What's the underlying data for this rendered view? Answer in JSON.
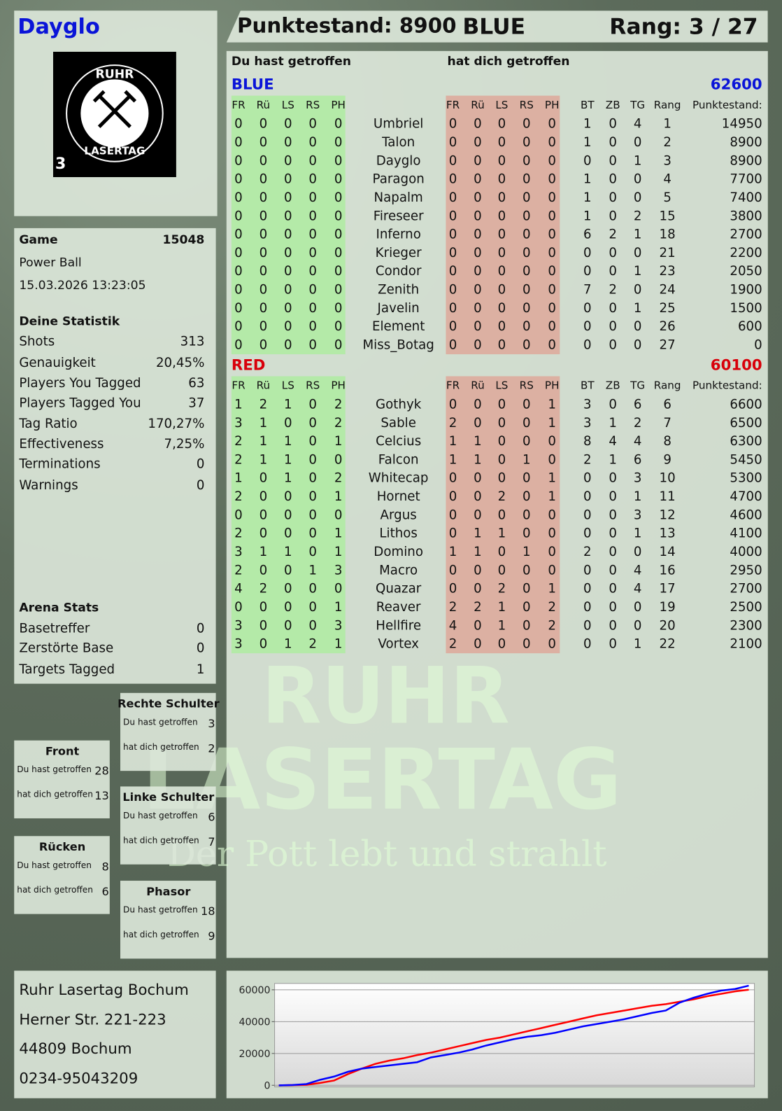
{
  "header": {
    "player": "Dayglo",
    "score": "Punktestand: 8900",
    "team": "BLUE",
    "rank": "Rang: 3 / 27"
  },
  "logo": {
    "top": "RUHR",
    "bottom": "LASERTAG",
    "badge": "3"
  },
  "watermark": {
    "line1": "RUHR",
    "line2": "LASERTAG",
    "slogan": "Der Pott lebt und strahlt"
  },
  "game": {
    "label": "Game",
    "id": 15048,
    "mode": "Power Ball",
    "datetime": "15.03.2026 13:23:05"
  },
  "stats": {
    "title": "Deine Statistik",
    "rows": [
      [
        "Shots",
        313
      ],
      [
        "Genauigkeit",
        "20,45%"
      ],
      [
        "Players You Tagged",
        63
      ],
      [
        "Players Tagged You",
        37
      ],
      [
        "Tag Ratio",
        "170,27%"
      ],
      [
        "Effectiveness",
        "7,25%"
      ],
      [
        "Terminations",
        0
      ],
      [
        "Warnings",
        0
      ]
    ]
  },
  "arena": {
    "title": "Arena Stats",
    "rows": [
      [
        "Basetreffer",
        0
      ],
      [
        "Zerstörte Base",
        0
      ],
      [
        "Targets Tagged",
        1
      ]
    ]
  },
  "zones": [
    {
      "title": "Rechte Schulter",
      "rows": [
        [
          "Du hast getroffen",
          3
        ],
        [
          "hat dich getroffen",
          2
        ]
      ]
    },
    {
      "title": "Front",
      "rows": [
        [
          "Du hast getroffen",
          28
        ],
        [
          "hat dich getroffen",
          13
        ]
      ]
    },
    {
      "title": "Linke Schulter",
      "rows": [
        [
          "Du hast getroffen",
          6
        ],
        [
          "hat dich getroffen",
          7
        ]
      ]
    },
    {
      "title": "Rücken",
      "rows": [
        [
          "Du hast getroffen",
          8
        ],
        [
          "hat dich getroffen",
          6
        ]
      ]
    },
    {
      "title": "Phasor",
      "rows": [
        [
          "Du hast getroffen",
          18
        ],
        [
          "hat dich getroffen",
          9
        ]
      ]
    }
  ],
  "table": {
    "out_heading": "Du hast getroffen",
    "in_heading": "hat dich getroffen",
    "hit_columns": [
      "FR",
      "Rü",
      "LS",
      "RS",
      "PH"
    ],
    "stat_columns": [
      "BT",
      "ZB",
      "TG",
      "Rang"
    ],
    "score_column": "Punktestand:",
    "teams": [
      {
        "name": "BLUE",
        "total": 62600,
        "color": "#0a14d8",
        "rows": [
          {
            "player": "Umbriel",
            "out": [
              0,
              0,
              0,
              0,
              0
            ],
            "in": [
              0,
              0,
              0,
              0,
              0
            ],
            "stats": [
              1,
              0,
              4,
              1
            ],
            "score": 14950
          },
          {
            "player": "Talon",
            "out": [
              0,
              0,
              0,
              0,
              0
            ],
            "in": [
              0,
              0,
              0,
              0,
              0
            ],
            "stats": [
              1,
              0,
              0,
              2
            ],
            "score": 8900
          },
          {
            "player": "Dayglo",
            "out": [
              0,
              0,
              0,
              0,
              0
            ],
            "in": [
              0,
              0,
              0,
              0,
              0
            ],
            "stats": [
              0,
              0,
              1,
              3
            ],
            "score": 8900
          },
          {
            "player": "Paragon",
            "out": [
              0,
              0,
              0,
              0,
              0
            ],
            "in": [
              0,
              0,
              0,
              0,
              0
            ],
            "stats": [
              1,
              0,
              0,
              4
            ],
            "score": 7700
          },
          {
            "player": "Napalm",
            "out": [
              0,
              0,
              0,
              0,
              0
            ],
            "in": [
              0,
              0,
              0,
              0,
              0
            ],
            "stats": [
              1,
              0,
              0,
              5
            ],
            "score": 7400
          },
          {
            "player": "Fireseer",
            "out": [
              0,
              0,
              0,
              0,
              0
            ],
            "in": [
              0,
              0,
              0,
              0,
              0
            ],
            "stats": [
              1,
              0,
              2,
              15
            ],
            "score": 3800
          },
          {
            "player": "Inferno",
            "out": [
              0,
              0,
              0,
              0,
              0
            ],
            "in": [
              0,
              0,
              0,
              0,
              0
            ],
            "stats": [
              6,
              2,
              1,
              18
            ],
            "score": 2700
          },
          {
            "player": "Krieger",
            "out": [
              0,
              0,
              0,
              0,
              0
            ],
            "in": [
              0,
              0,
              0,
              0,
              0
            ],
            "stats": [
              0,
              0,
              0,
              21
            ],
            "score": 2200
          },
          {
            "player": "Condor",
            "out": [
              0,
              0,
              0,
              0,
              0
            ],
            "in": [
              0,
              0,
              0,
              0,
              0
            ],
            "stats": [
              0,
              0,
              1,
              23
            ],
            "score": 2050
          },
          {
            "player": "Zenith",
            "out": [
              0,
              0,
              0,
              0,
              0
            ],
            "in": [
              0,
              0,
              0,
              0,
              0
            ],
            "stats": [
              7,
              2,
              0,
              24
            ],
            "score": 1900
          },
          {
            "player": "Javelin",
            "out": [
              0,
              0,
              0,
              0,
              0
            ],
            "in": [
              0,
              0,
              0,
              0,
              0
            ],
            "stats": [
              0,
              0,
              1,
              25
            ],
            "score": 1500
          },
          {
            "player": "Element",
            "out": [
              0,
              0,
              0,
              0,
              0
            ],
            "in": [
              0,
              0,
              0,
              0,
              0
            ],
            "stats": [
              0,
              0,
              0,
              26
            ],
            "score": 600
          },
          {
            "player": "Miss_Botag",
            "out": [
              0,
              0,
              0,
              0,
              0
            ],
            "in": [
              0,
              0,
              0,
              0,
              0
            ],
            "stats": [
              0,
              0,
              0,
              27
            ],
            "score": 0
          }
        ]
      },
      {
        "name": "RED",
        "total": 60100,
        "color": "#d8000a",
        "rows": [
          {
            "player": "Gothyk",
            "out": [
              1,
              2,
              1,
              0,
              2
            ],
            "in": [
              0,
              0,
              0,
              0,
              1
            ],
            "stats": [
              3,
              0,
              6,
              6
            ],
            "score": 6600
          },
          {
            "player": "Sable",
            "out": [
              3,
              1,
              0,
              0,
              2
            ],
            "in": [
              2,
              0,
              0,
              0,
              1
            ],
            "stats": [
              3,
              1,
              2,
              7
            ],
            "score": 6500
          },
          {
            "player": "Celcius",
            "out": [
              2,
              1,
              1,
              0,
              1
            ],
            "in": [
              1,
              1,
              0,
              0,
              0
            ],
            "stats": [
              8,
              4,
              4,
              8
            ],
            "score": 6300
          },
          {
            "player": "Falcon",
            "out": [
              2,
              1,
              1,
              0,
              0
            ],
            "in": [
              1,
              1,
              0,
              1,
              0
            ],
            "stats": [
              2,
              1,
              6,
              9
            ],
            "score": 5450
          },
          {
            "player": "Whitecap",
            "out": [
              1,
              0,
              1,
              0,
              2
            ],
            "in": [
              0,
              0,
              0,
              0,
              1
            ],
            "stats": [
              0,
              0,
              3,
              10
            ],
            "score": 5300
          },
          {
            "player": "Hornet",
            "out": [
              2,
              0,
              0,
              0,
              1
            ],
            "in": [
              0,
              0,
              2,
              0,
              1
            ],
            "stats": [
              0,
              0,
              1,
              11
            ],
            "score": 4700
          },
          {
            "player": "Argus",
            "out": [
              0,
              0,
              0,
              0,
              0
            ],
            "in": [
              0,
              0,
              0,
              0,
              0
            ],
            "stats": [
              0,
              0,
              3,
              12
            ],
            "score": 4600
          },
          {
            "player": "Lithos",
            "out": [
              2,
              0,
              0,
              0,
              1
            ],
            "in": [
              0,
              1,
              1,
              0,
              0
            ],
            "stats": [
              0,
              0,
              1,
              13
            ],
            "score": 4100
          },
          {
            "player": "Domino",
            "out": [
              3,
              1,
              1,
              0,
              1
            ],
            "in": [
              1,
              1,
              0,
              1,
              0
            ],
            "stats": [
              2,
              0,
              0,
              14
            ],
            "score": 4000
          },
          {
            "player": "Macro",
            "out": [
              2,
              0,
              0,
              1,
              3
            ],
            "in": [
              0,
              0,
              0,
              0,
              0
            ],
            "stats": [
              0,
              0,
              4,
              16
            ],
            "score": 2950
          },
          {
            "player": "Quazar",
            "out": [
              4,
              2,
              0,
              0,
              0
            ],
            "in": [
              0,
              0,
              2,
              0,
              1
            ],
            "stats": [
              0,
              0,
              4,
              17
            ],
            "score": 2700
          },
          {
            "player": "Reaver",
            "out": [
              0,
              0,
              0,
              0,
              1
            ],
            "in": [
              2,
              2,
              1,
              0,
              2
            ],
            "stats": [
              0,
              0,
              0,
              19
            ],
            "score": 2500
          },
          {
            "player": "Hellfire",
            "out": [
              3,
              0,
              0,
              0,
              3
            ],
            "in": [
              4,
              0,
              1,
              0,
              2
            ],
            "stats": [
              0,
              0,
              0,
              20
            ],
            "score": 2300
          },
          {
            "player": "Vortex",
            "out": [
              3,
              0,
              1,
              2,
              1
            ],
            "in": [
              2,
              0,
              0,
              0,
              0
            ],
            "stats": [
              0,
              0,
              1,
              22
            ],
            "score": 2100
          }
        ]
      }
    ]
  },
  "footer": {
    "lines": [
      "Ruhr Lasertag Bochum",
      "Herner Str. 221-223",
      "44809 Bochum",
      "0234-95043209"
    ]
  },
  "chart_data": {
    "type": "line",
    "ylim": [
      -1000,
      64000
    ],
    "yticks": [
      0,
      20000,
      40000,
      60000
    ],
    "grid": true,
    "series": [
      {
        "color": "#ff0000",
        "values": [
          0,
          100,
          300,
          1500,
          3000,
          7000,
          10500,
          13500,
          15500,
          17000,
          19000,
          20500,
          22500,
          24500,
          26500,
          28500,
          30000,
          32000,
          34000,
          36000,
          38000,
          40000,
          42000,
          44000,
          45500,
          47000,
          48500,
          50000,
          51000,
          52500,
          54000,
          56000,
          57500,
          59000,
          60100
        ]
      },
      {
        "color": "#0000ff",
        "values": [
          0,
          200,
          800,
          3500,
          5500,
          8500,
          10500,
          11500,
          12500,
          13500,
          14500,
          17500,
          19000,
          20500,
          22500,
          25000,
          27000,
          29000,
          30500,
          31500,
          33000,
          35000,
          37000,
          38500,
          40000,
          41500,
          43500,
          45500,
          47000,
          52000,
          55000,
          57500,
          59500,
          60500,
          62600
        ]
      }
    ]
  }
}
